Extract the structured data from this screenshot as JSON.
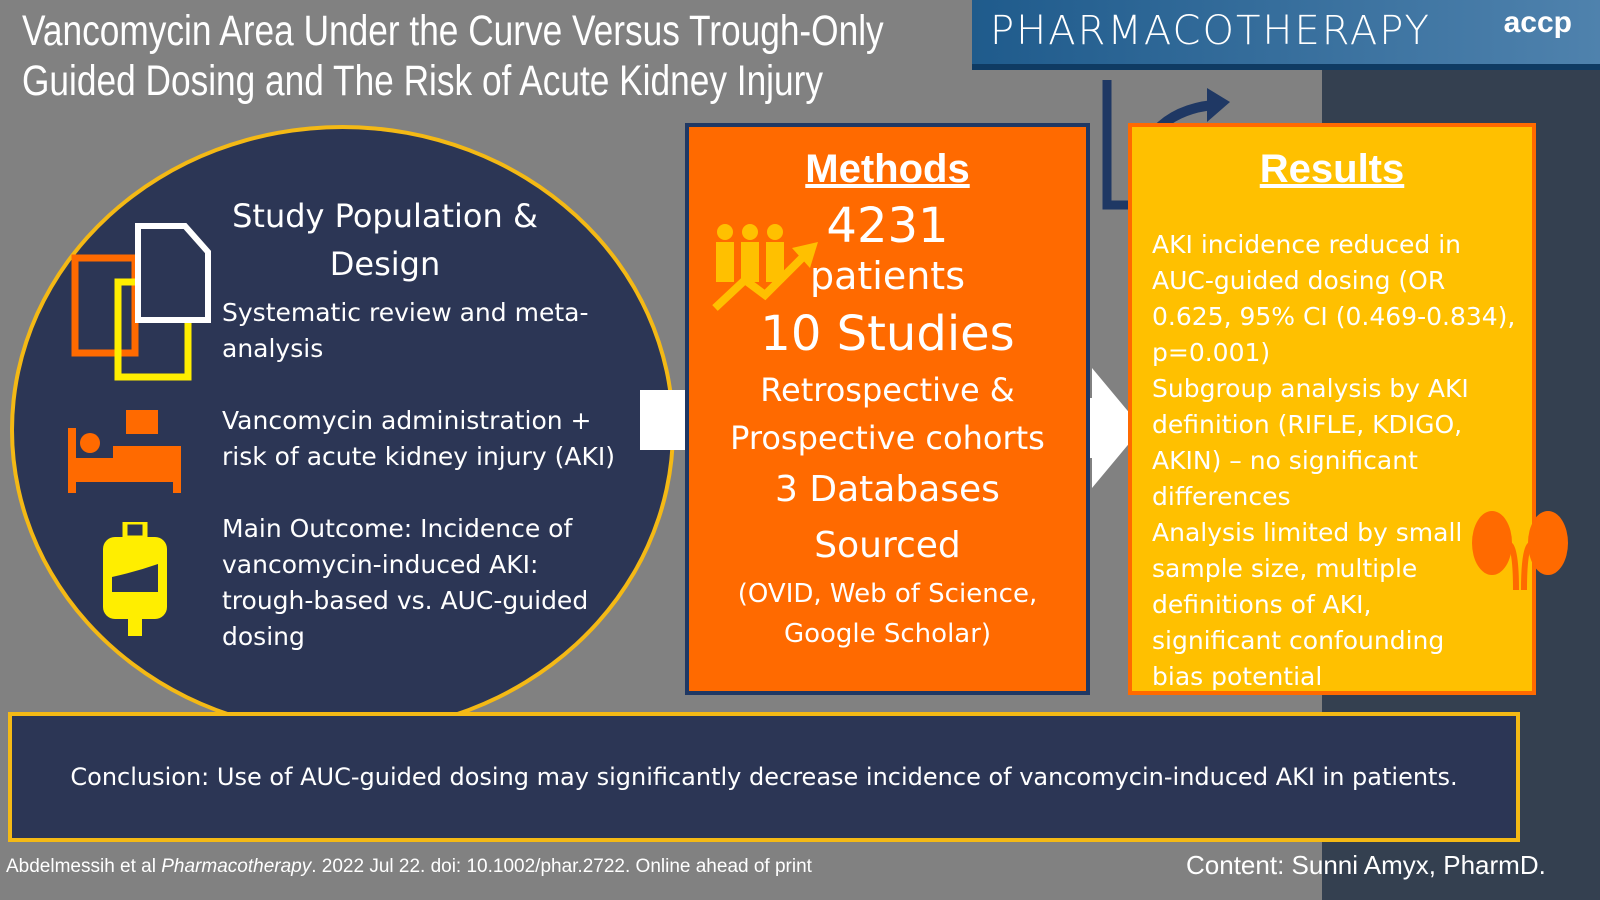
{
  "title": "Vancomycin Area Under the Curve Versus Trough-Only Guided Dosing and The Risk of Acute Kidney Injury",
  "banner": {
    "journal": "PHARMACOTHERAPY",
    "logo": "accp"
  },
  "population": {
    "heading": "Study Population & Design",
    "items": [
      "Systematic review and meta-analysis",
      "Vancomycin administration + risk of acute kidney injury (AKI)",
      "Main Outcome: Incidence of vancomycin-induced AKI: trough-based vs. AUC-guided dosing"
    ]
  },
  "methods": {
    "heading": "Methods",
    "patients_count": "4231",
    "patients_label": "patients",
    "studies": "10 Studies",
    "design": "Retrospective & Prospective cohorts",
    "databases": "3 Databases Sourced",
    "database_list": "(OVID, Web of Science, Google Scholar)"
  },
  "results": {
    "heading": "Results",
    "items": [
      "AKI incidence reduced in AUC-guided dosing (OR 0.625, 95% CI (0.469-0.834), p=0.001)",
      "Subgroup analysis by AKI definition (RIFLE, KDIGO, AKIN) – no significant differences",
      "Analysis limited by small sample size, multiple definitions of AKI, significant confounding bias potential"
    ]
  },
  "conclusion": "Conclusion: Use of AUC-guided dosing may significantly decrease incidence of vancomycin-induced AKI in patients.",
  "citation": {
    "authors": "Abdelmessih et al ",
    "journal": "Pharmacotherapy",
    "rest": ". 2022 Jul 22. doi: 10.1002/phar.2722. Online ahead of print"
  },
  "credit": {
    "label": "Content: ",
    "name": "Sunni Amyx, PharmD."
  },
  "colors": {
    "navy": "#2c3655",
    "orange": "#ff6a00",
    "gold": "#ffc000",
    "yellow": "#f4b915"
  }
}
